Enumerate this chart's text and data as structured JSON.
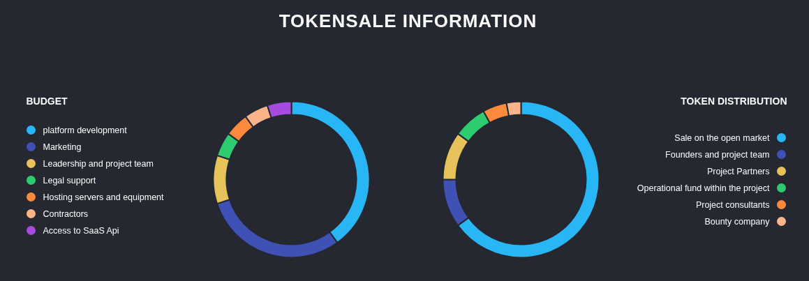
{
  "chart_data": [
    {
      "type": "donut",
      "title": "BUDGET",
      "annotations": [
        "TOKENSALE INFORMATION"
      ],
      "legend": "left",
      "categories": [
        "platform development",
        "Marketing",
        "Leadership and project team",
        "Legal support",
        "Hosting servers and equipment",
        "Contractors",
        "Access to SaaS Api"
      ],
      "values": [
        40,
        30,
        10,
        5,
        5,
        5,
        5
      ],
      "colors": [
        "#29b6f6",
        "#3f51b5",
        "#e6c25a",
        "#2ecc71",
        "#fd8a3c",
        "#fdb38a",
        "#a64bdf"
      ]
    },
    {
      "type": "donut",
      "title": "TOKEN DISTRIBUTION",
      "legend": "right",
      "categories": [
        "Sale on the open market",
        "Founders and project team",
        "Project Partners",
        "Operational fund within the project",
        "Project consultants",
        "Bounty company"
      ],
      "values": [
        65,
        10,
        10,
        7,
        5,
        3
      ],
      "colors": [
        "#29b6f6",
        "#3f51b5",
        "#e6c25a",
        "#2ecc71",
        "#fd8a3c",
        "#fdb38a"
      ]
    }
  ]
}
